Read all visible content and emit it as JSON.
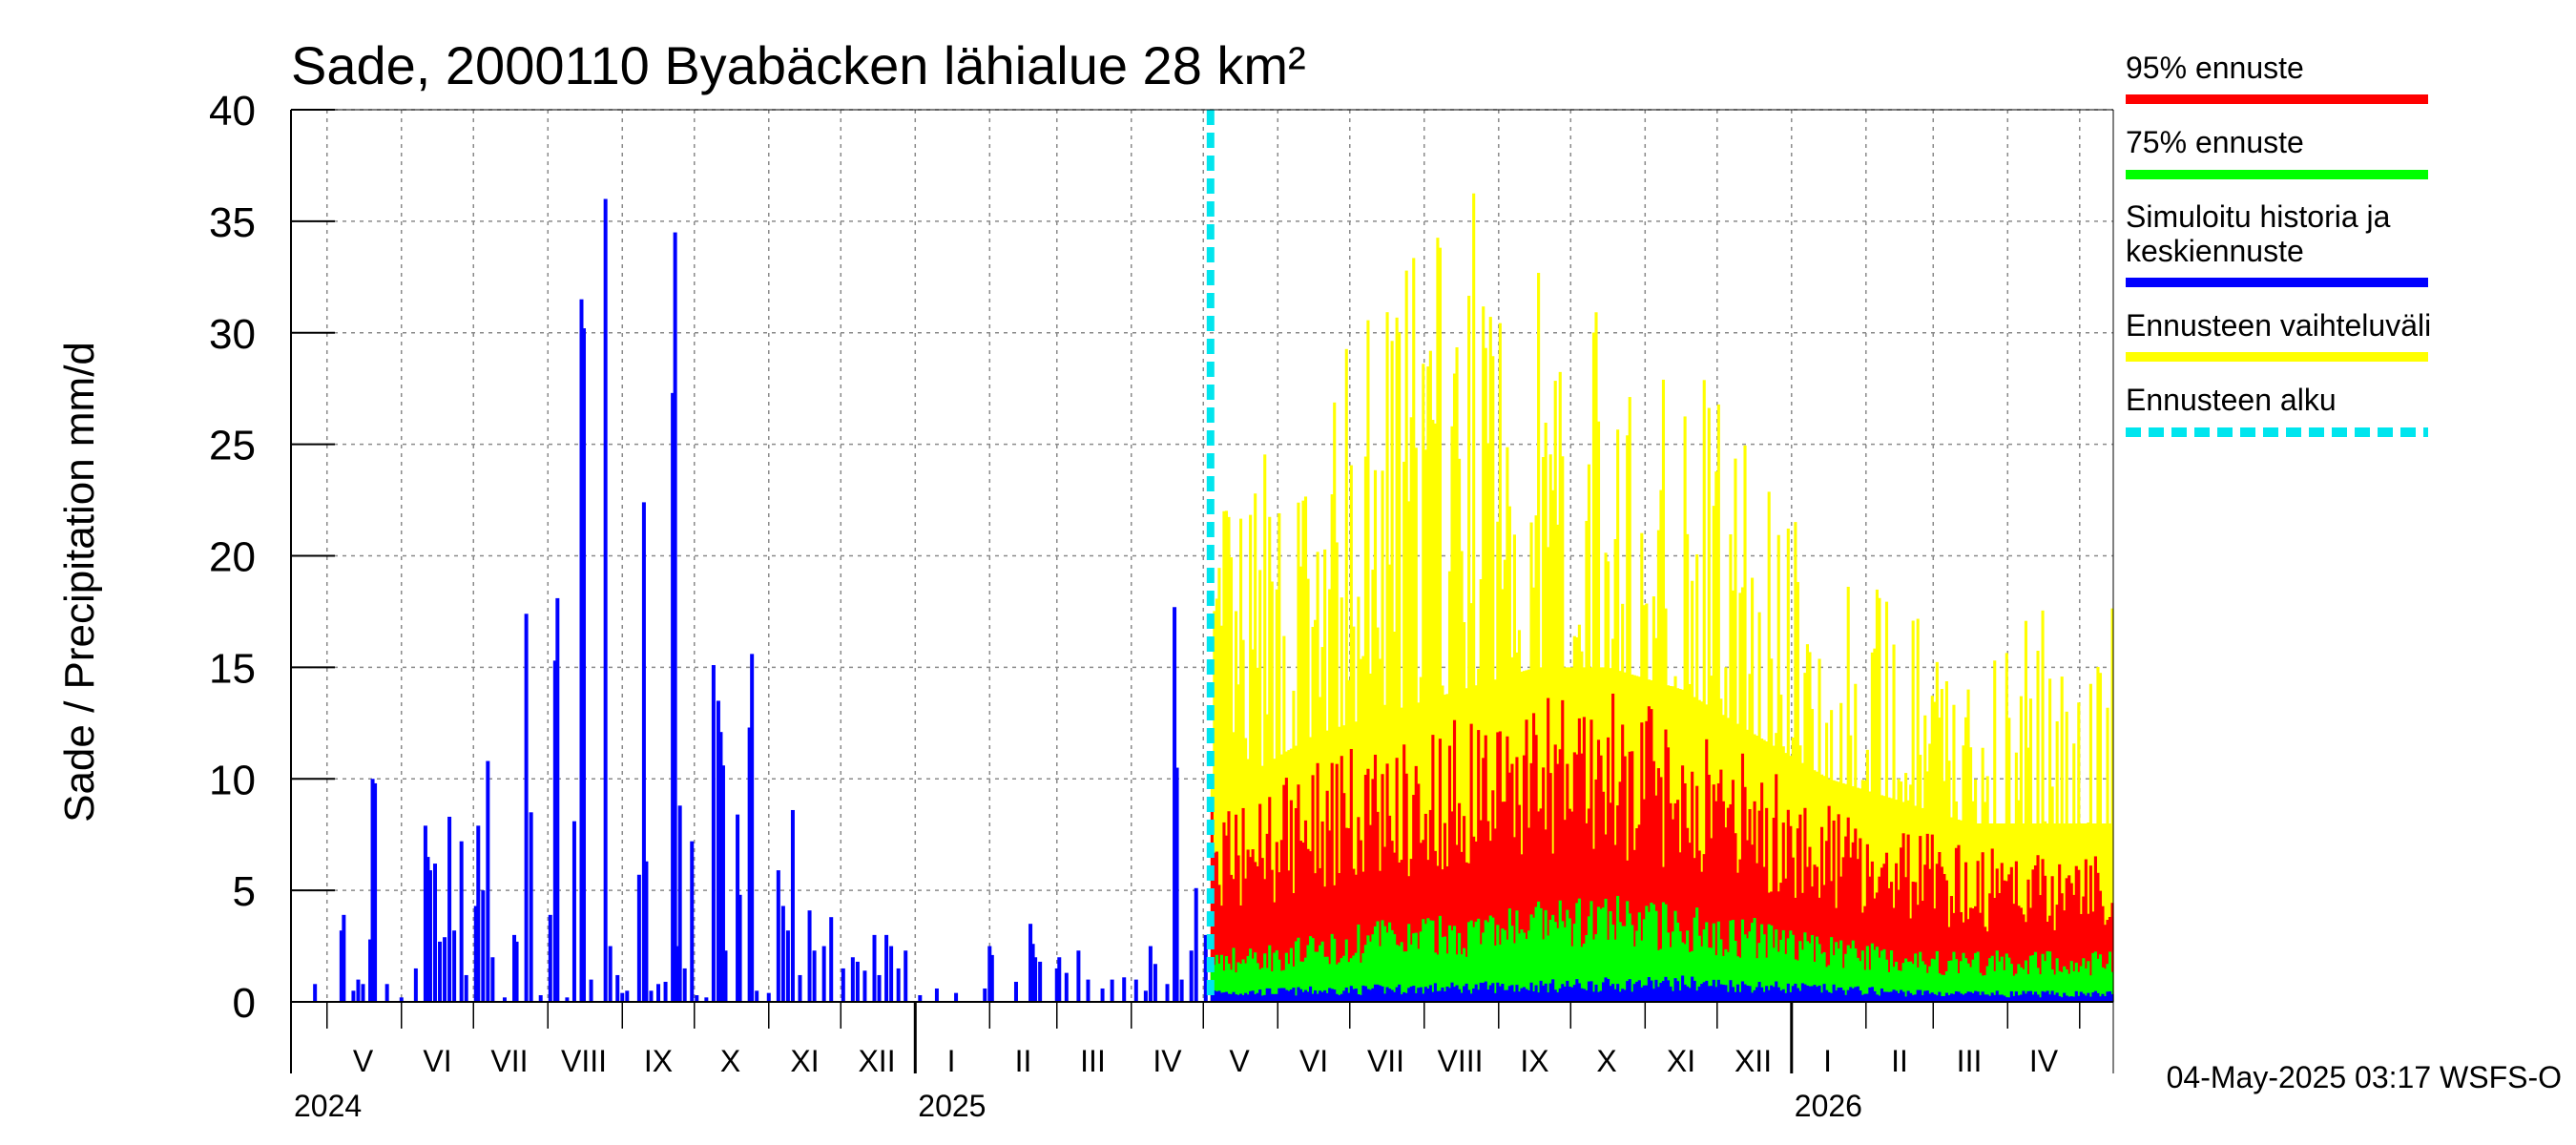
{
  "chart_data": {
    "type": "bar",
    "title": "Sade, 2000110 Byabäcken  lähialue 28 km²",
    "ylabel": "Sade / Precipitation   mm/d",
    "ylim": [
      0,
      40
    ],
    "yticks": [
      0,
      5,
      10,
      15,
      20,
      25,
      30,
      35,
      40
    ],
    "x_start": "2024-04-16",
    "x_end": "2026-05-15",
    "forecast_start": "2025-05-04",
    "month_labels": [
      {
        "label": "V",
        "date": "2024-05-16"
      },
      {
        "label": "VI",
        "date": "2024-06-16"
      },
      {
        "label": "VII",
        "date": "2024-07-16"
      },
      {
        "label": "VIII",
        "date": "2024-08-16"
      },
      {
        "label": "IX",
        "date": "2024-09-16"
      },
      {
        "label": "X",
        "date": "2024-10-16"
      },
      {
        "label": "XI",
        "date": "2024-11-16"
      },
      {
        "label": "XII",
        "date": "2024-12-16"
      },
      {
        "label": "I",
        "date": "2025-01-16"
      },
      {
        "label": "II",
        "date": "2025-02-15"
      },
      {
        "label": "III",
        "date": "2025-03-16"
      },
      {
        "label": "IV",
        "date": "2025-04-16"
      },
      {
        "label": "V",
        "date": "2025-05-16"
      },
      {
        "label": "VI",
        "date": "2025-06-16"
      },
      {
        "label": "VII",
        "date": "2025-07-16"
      },
      {
        "label": "VIII",
        "date": "2025-08-16"
      },
      {
        "label": "IX",
        "date": "2025-09-16"
      },
      {
        "label": "X",
        "date": "2025-10-16"
      },
      {
        "label": "XI",
        "date": "2025-11-16"
      },
      {
        "label": "XII",
        "date": "2025-12-16"
      },
      {
        "label": "I",
        "date": "2026-01-16"
      },
      {
        "label": "II",
        "date": "2026-02-15"
      },
      {
        "label": "III",
        "date": "2026-03-16"
      },
      {
        "label": "IV",
        "date": "2026-04-16"
      }
    ],
    "year_labels": [
      {
        "label": "2024",
        "date": "2024-05-01"
      },
      {
        "label": "2025",
        "date": "2025-01-01"
      },
      {
        "label": "2026",
        "date": "2026-01-01"
      }
    ],
    "history_events": [
      {
        "date": "2024-04-26",
        "value": 0.8
      },
      {
        "date": "2024-05-07",
        "value": 3.2
      },
      {
        "date": "2024-05-08",
        "value": 3.9
      },
      {
        "date": "2024-05-12",
        "value": 0.5
      },
      {
        "date": "2024-05-14",
        "value": 1.0
      },
      {
        "date": "2024-05-16",
        "value": 0.8
      },
      {
        "date": "2024-05-19",
        "value": 2.8
      },
      {
        "date": "2024-05-20",
        "value": 10.0
      },
      {
        "date": "2024-05-21",
        "value": 9.8
      },
      {
        "date": "2024-05-26",
        "value": 0.8
      },
      {
        "date": "2024-06-01",
        "value": 0.2
      },
      {
        "date": "2024-06-07",
        "value": 1.5
      },
      {
        "date": "2024-06-11",
        "value": 7.9
      },
      {
        "date": "2024-06-12",
        "value": 6.5
      },
      {
        "date": "2024-06-13",
        "value": 5.9
      },
      {
        "date": "2024-06-15",
        "value": 6.2
      },
      {
        "date": "2024-06-17",
        "value": 2.7
      },
      {
        "date": "2024-06-19",
        "value": 2.9
      },
      {
        "date": "2024-06-21",
        "value": 8.3
      },
      {
        "date": "2024-06-23",
        "value": 3.2
      },
      {
        "date": "2024-06-26",
        "value": 7.2
      },
      {
        "date": "2024-06-28",
        "value": 1.2
      },
      {
        "date": "2024-07-02",
        "value": 4.3
      },
      {
        "date": "2024-07-03",
        "value": 7.9
      },
      {
        "date": "2024-07-05",
        "value": 5.0
      },
      {
        "date": "2024-07-07",
        "value": 10.8
      },
      {
        "date": "2024-07-09",
        "value": 2.0
      },
      {
        "date": "2024-07-14",
        "value": 0.2
      },
      {
        "date": "2024-07-18",
        "value": 3.0
      },
      {
        "date": "2024-07-19",
        "value": 2.7
      },
      {
        "date": "2024-07-23",
        "value": 17.4
      },
      {
        "date": "2024-07-25",
        "value": 8.5
      },
      {
        "date": "2024-07-29",
        "value": 0.3
      },
      {
        "date": "2024-08-02",
        "value": 3.9
      },
      {
        "date": "2024-08-04",
        "value": 15.3
      },
      {
        "date": "2024-08-05",
        "value": 18.1
      },
      {
        "date": "2024-08-09",
        "value": 0.2
      },
      {
        "date": "2024-08-12",
        "value": 8.1
      },
      {
        "date": "2024-08-15",
        "value": 31.5
      },
      {
        "date": "2024-08-16",
        "value": 30.2
      },
      {
        "date": "2024-08-19",
        "value": 1.0
      },
      {
        "date": "2024-08-25",
        "value": 36.0
      },
      {
        "date": "2024-08-27",
        "value": 2.5
      },
      {
        "date": "2024-08-30",
        "value": 1.2
      },
      {
        "date": "2024-09-01",
        "value": 0.4
      },
      {
        "date": "2024-09-03",
        "value": 0.5
      },
      {
        "date": "2024-09-08",
        "value": 5.7
      },
      {
        "date": "2024-09-10",
        "value": 22.4
      },
      {
        "date": "2024-09-11",
        "value": 6.3
      },
      {
        "date": "2024-09-13",
        "value": 0.5
      },
      {
        "date": "2024-09-16",
        "value": 0.8
      },
      {
        "date": "2024-09-19",
        "value": 0.9
      },
      {
        "date": "2024-09-22",
        "value": 27.3
      },
      {
        "date": "2024-09-23",
        "value": 34.5
      },
      {
        "date": "2024-09-24",
        "value": 2.5
      },
      {
        "date": "2024-09-25",
        "value": 8.8
      },
      {
        "date": "2024-09-27",
        "value": 1.5
      },
      {
        "date": "2024-09-30",
        "value": 7.2
      },
      {
        "date": "2024-10-02",
        "value": 0.3
      },
      {
        "date": "2024-10-06",
        "value": 0.2
      },
      {
        "date": "2024-10-09",
        "value": 15.1
      },
      {
        "date": "2024-10-11",
        "value": 13.5
      },
      {
        "date": "2024-10-12",
        "value": 12.1
      },
      {
        "date": "2024-10-13",
        "value": 10.6
      },
      {
        "date": "2024-10-14",
        "value": 2.3
      },
      {
        "date": "2024-10-19",
        "value": 8.4
      },
      {
        "date": "2024-10-20",
        "value": 4.8
      },
      {
        "date": "2024-10-24",
        "value": 12.3
      },
      {
        "date": "2024-10-25",
        "value": 15.6
      },
      {
        "date": "2024-10-27",
        "value": 0.5
      },
      {
        "date": "2024-11-01",
        "value": 0.4
      },
      {
        "date": "2024-11-05",
        "value": 5.9
      },
      {
        "date": "2024-11-07",
        "value": 4.3
      },
      {
        "date": "2024-11-09",
        "value": 3.2
      },
      {
        "date": "2024-11-11",
        "value": 8.6
      },
      {
        "date": "2024-11-14",
        "value": 1.2
      },
      {
        "date": "2024-11-18",
        "value": 4.1
      },
      {
        "date": "2024-11-20",
        "value": 2.3
      },
      {
        "date": "2024-11-24",
        "value": 2.5
      },
      {
        "date": "2024-11-27",
        "value": 3.8
      },
      {
        "date": "2024-12-02",
        "value": 1.5
      },
      {
        "date": "2024-12-06",
        "value": 2.0
      },
      {
        "date": "2024-12-08",
        "value": 1.8
      },
      {
        "date": "2024-12-11",
        "value": 1.4
      },
      {
        "date": "2024-12-15",
        "value": 3.0
      },
      {
        "date": "2024-12-17",
        "value": 1.2
      },
      {
        "date": "2024-12-20",
        "value": 3.0
      },
      {
        "date": "2024-12-22",
        "value": 2.5
      },
      {
        "date": "2024-12-25",
        "value": 1.5
      },
      {
        "date": "2024-12-28",
        "value": 2.3
      },
      {
        "date": "2025-01-03",
        "value": 0.3
      },
      {
        "date": "2025-01-10",
        "value": 0.6
      },
      {
        "date": "2025-01-18",
        "value": 0.4
      },
      {
        "date": "2025-01-30",
        "value": 0.6
      },
      {
        "date": "2025-02-01",
        "value": 2.5
      },
      {
        "date": "2025-02-02",
        "value": 2.1
      },
      {
        "date": "2025-02-12",
        "value": 0.9
      },
      {
        "date": "2025-02-18",
        "value": 3.5
      },
      {
        "date": "2025-02-19",
        "value": 2.6
      },
      {
        "date": "2025-02-20",
        "value": 2.0
      },
      {
        "date": "2025-02-22",
        "value": 1.8
      },
      {
        "date": "2025-03-01",
        "value": 1.5
      },
      {
        "date": "2025-03-02",
        "value": 2.0
      },
      {
        "date": "2025-03-05",
        "value": 1.3
      },
      {
        "date": "2025-03-10",
        "value": 2.3
      },
      {
        "date": "2025-03-14",
        "value": 1.0
      },
      {
        "date": "2025-03-20",
        "value": 0.6
      },
      {
        "date": "2025-03-24",
        "value": 1.0
      },
      {
        "date": "2025-03-29",
        "value": 1.1
      },
      {
        "date": "2025-04-03",
        "value": 1.0
      },
      {
        "date": "2025-04-07",
        "value": 0.5
      },
      {
        "date": "2025-04-09",
        "value": 2.5
      },
      {
        "date": "2025-04-11",
        "value": 1.7
      },
      {
        "date": "2025-04-16",
        "value": 0.8
      },
      {
        "date": "2025-04-19",
        "value": 17.7
      },
      {
        "date": "2025-04-20",
        "value": 10.5
      },
      {
        "date": "2025-04-22",
        "value": 1.0
      },
      {
        "date": "2025-04-26",
        "value": 2.3
      },
      {
        "date": "2025-04-28",
        "value": 5.1
      },
      {
        "date": "2025-05-02",
        "value": 3.0
      }
    ],
    "forecast_monthly": [
      {
        "month": "V",
        "date": "2025-05-16",
        "range_max": 24,
        "p95": 9,
        "p75": 2.5,
        "mean": 0.6
      },
      {
        "month": "VI",
        "date": "2025-06-16",
        "range_max": 26,
        "p95": 11,
        "p75": 3.0,
        "mean": 0.7
      },
      {
        "month": "VII",
        "date": "2025-07-16",
        "range_max": 34,
        "p95": 12,
        "p75": 3.8,
        "mean": 0.8
      },
      {
        "month": "VIII",
        "date": "2025-08-16",
        "range_max": 37,
        "p95": 13,
        "p75": 4.0,
        "mean": 0.9
      },
      {
        "month": "IX",
        "date": "2025-09-16",
        "range_max": 34,
        "p95": 14,
        "p75": 4.5,
        "mean": 1.0
      },
      {
        "month": "X",
        "date": "2025-10-16",
        "range_max": 31,
        "p95": 14,
        "p75": 4.8,
        "mean": 1.1
      },
      {
        "month": "XI",
        "date": "2025-11-16",
        "range_max": 30,
        "p95": 13,
        "p75": 4.5,
        "mean": 1.2
      },
      {
        "month": "XII",
        "date": "2025-12-16",
        "range_max": 26,
        "p95": 11,
        "p75": 3.8,
        "mean": 1.0
      },
      {
        "month": "I",
        "date": "2026-01-16",
        "range_max": 20,
        "p95": 9,
        "p75": 3.0,
        "mean": 0.8
      },
      {
        "month": "II",
        "date": "2026-02-15",
        "range_max": 18,
        "p95": 8,
        "p75": 2.5,
        "mean": 0.6
      },
      {
        "month": "III",
        "date": "2026-03-16",
        "range_max": 16,
        "p95": 7,
        "p75": 2.3,
        "mean": 0.5
      },
      {
        "month": "IV",
        "date": "2026-04-16",
        "range_max": 18,
        "p95": 7,
        "p75": 2.3,
        "mean": 0.5
      }
    ],
    "series": [
      {
        "name": "95% ennuste",
        "color": "#ff0000"
      },
      {
        "name": "75% ennuste",
        "color": "#00ff00"
      },
      {
        "name": "Simuloitu historia ja keskiennuste",
        "color": "#0000ff"
      },
      {
        "name": "Ennusteen vaihteluväli",
        "color": "#ffff00"
      },
      {
        "name": "Ennusteen alku",
        "color": "#00e5ee"
      }
    ],
    "legend_position": "right"
  },
  "timestamp": "04-May-2025 03:17 WSFS-O"
}
